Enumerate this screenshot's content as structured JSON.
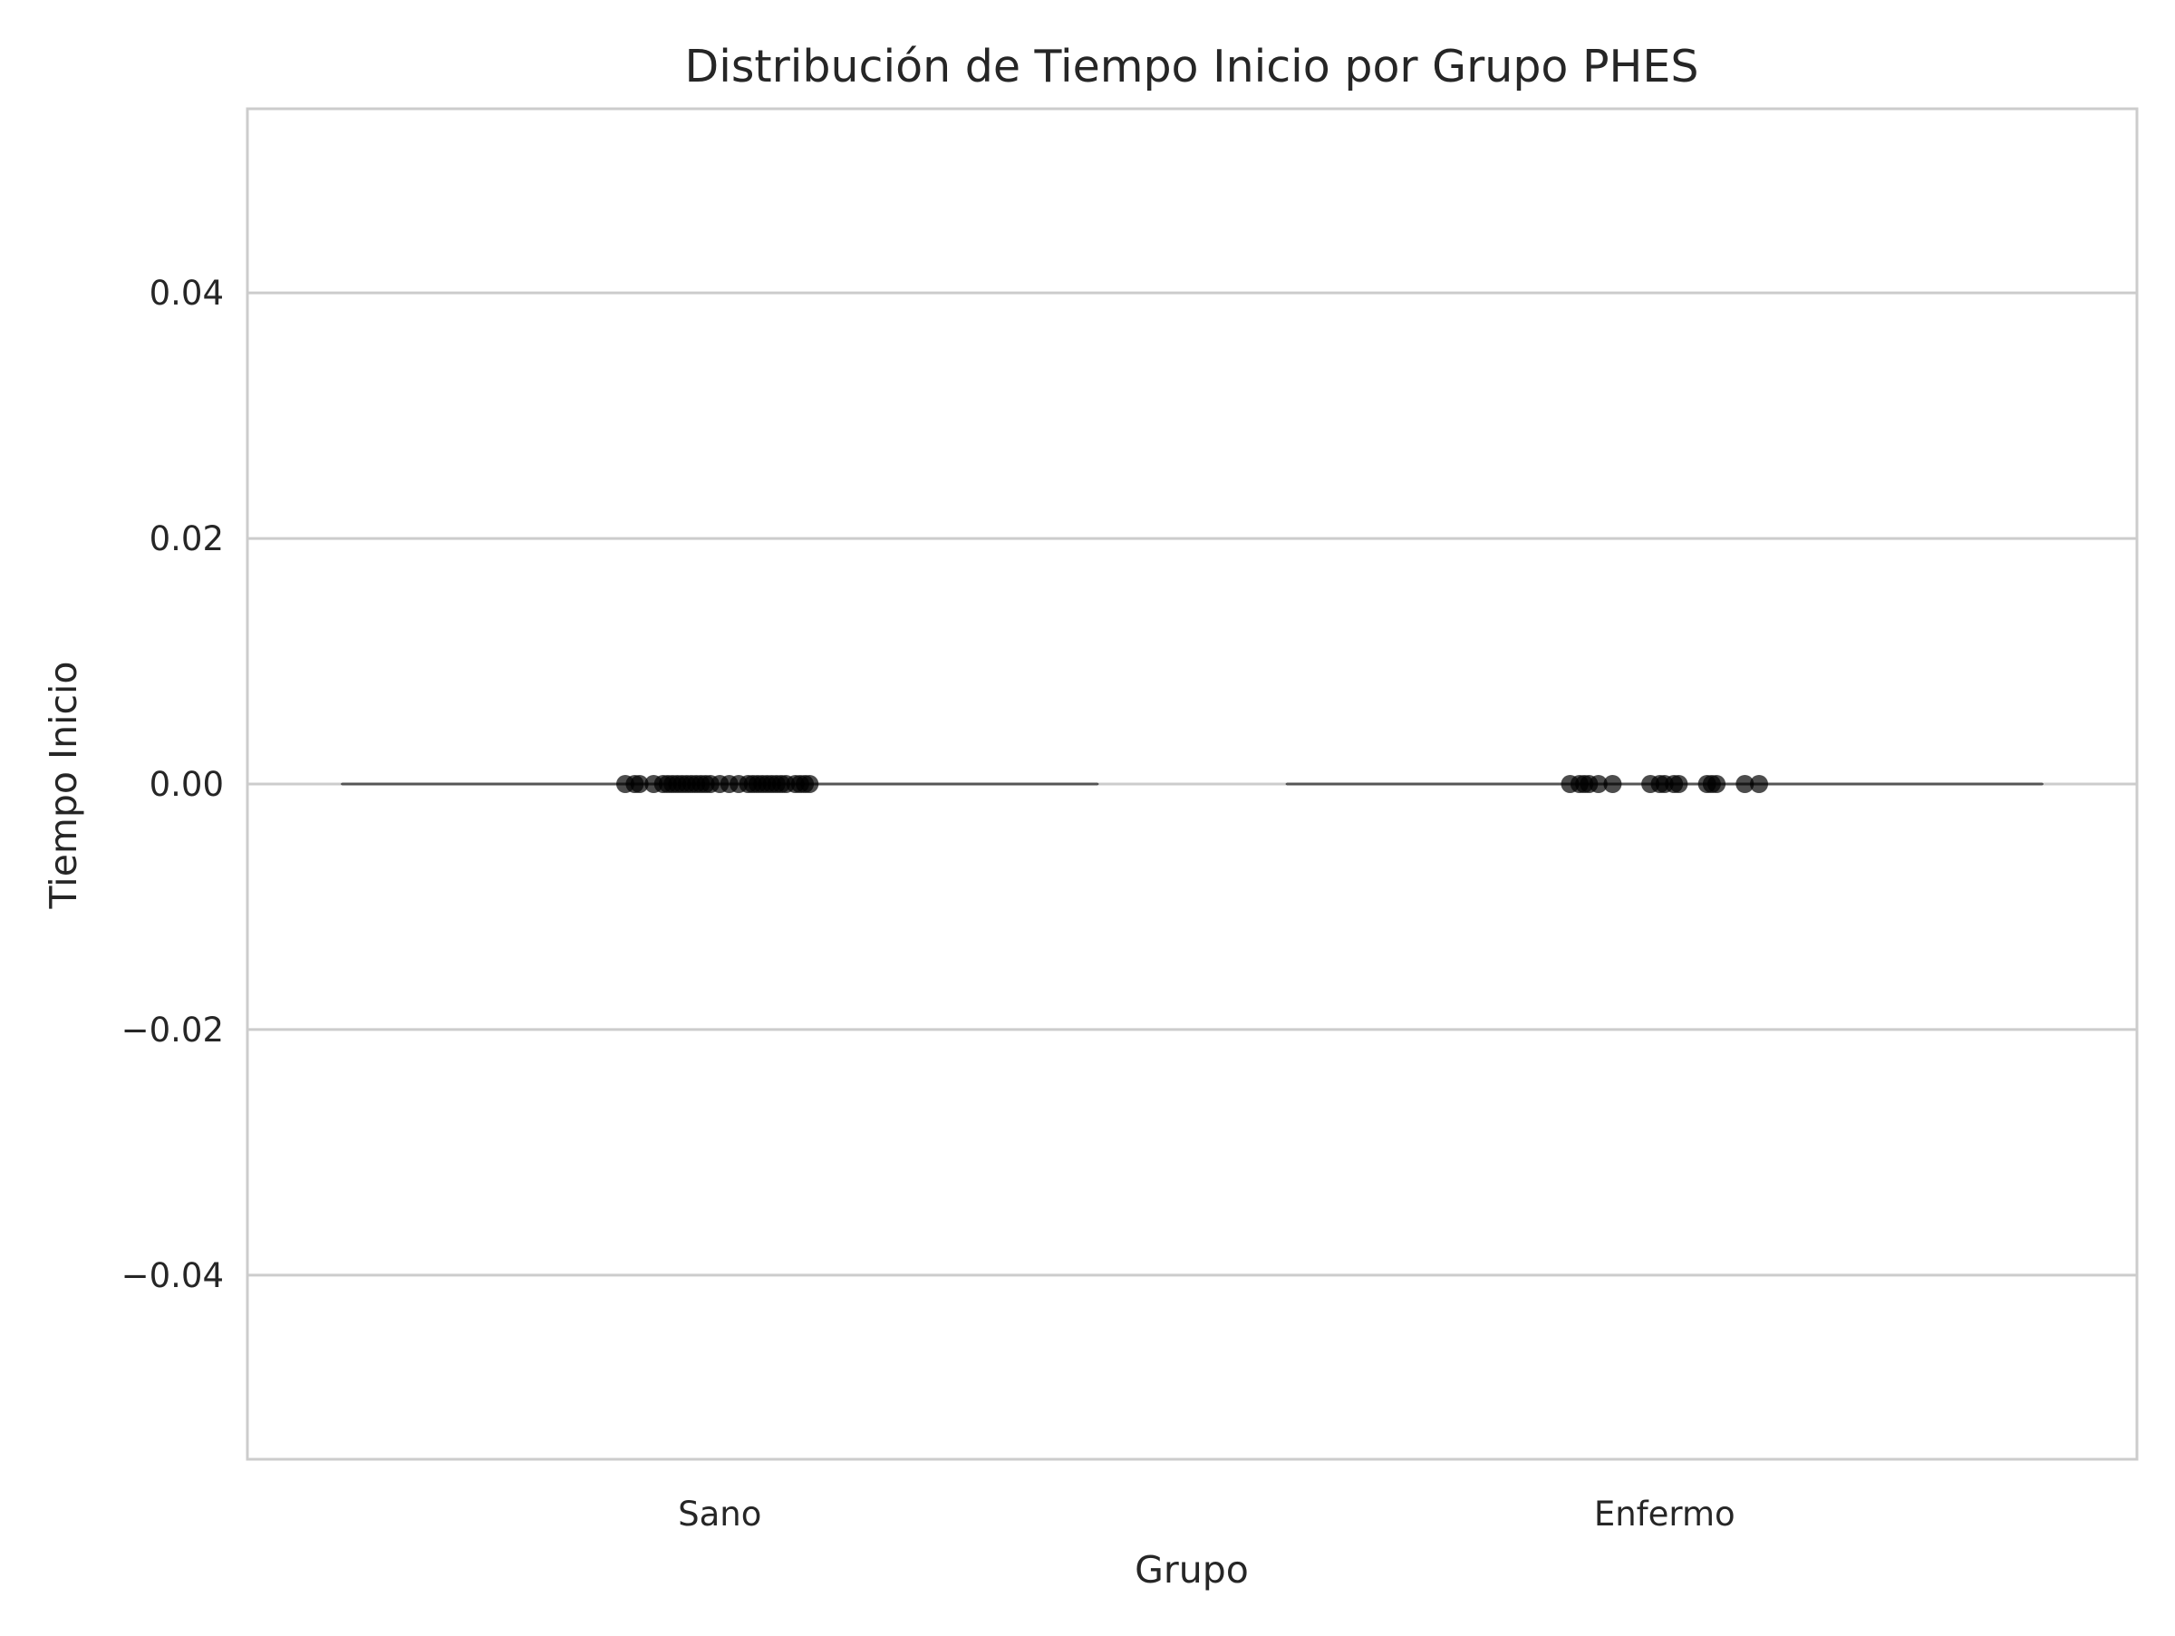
{
  "chart_data": {
    "type": "box",
    "title": "Distribución de Tiempo Inicio por Grupo PHES",
    "xlabel": "Grupo",
    "ylabel": "Tiempo Inicio",
    "categories": [
      "Sano",
      "Enfermo"
    ],
    "ylim": [
      -0.055,
      0.055
    ],
    "yticks": [
      -0.04,
      -0.02,
      0.0,
      0.02,
      0.04
    ],
    "ytick_labels": [
      "−0.04",
      "−0.02",
      "0.00",
      "0.02",
      "0.04"
    ],
    "grid": true,
    "groups": [
      {
        "category": "Sano",
        "median": 0.0,
        "q1": 0.0,
        "q3": 0.0,
        "min": 0.0,
        "max": 0.0,
        "points": [
          {
            "jitter": -0.1,
            "y": 0
          },
          {
            "jitter": -0.09,
            "y": 0
          },
          {
            "jitter": -0.085,
            "y": 0
          },
          {
            "jitter": -0.07,
            "y": 0
          },
          {
            "jitter": -0.06,
            "y": 0
          },
          {
            "jitter": -0.055,
            "y": 0
          },
          {
            "jitter": -0.05,
            "y": 0
          },
          {
            "jitter": -0.045,
            "y": 0
          },
          {
            "jitter": -0.04,
            "y": 0
          },
          {
            "jitter": -0.035,
            "y": 0
          },
          {
            "jitter": -0.03,
            "y": 0
          },
          {
            "jitter": -0.025,
            "y": 0
          },
          {
            "jitter": -0.02,
            "y": 0
          },
          {
            "jitter": -0.015,
            "y": 0
          },
          {
            "jitter": -0.01,
            "y": 0
          },
          {
            "jitter": 0.0,
            "y": 0
          },
          {
            "jitter": 0.01,
            "y": 0
          },
          {
            "jitter": 0.02,
            "y": 0
          },
          {
            "jitter": 0.03,
            "y": 0
          },
          {
            "jitter": 0.035,
            "y": 0
          },
          {
            "jitter": 0.04,
            "y": 0
          },
          {
            "jitter": 0.045,
            "y": 0
          },
          {
            "jitter": 0.05,
            "y": 0
          },
          {
            "jitter": 0.055,
            "y": 0
          },
          {
            "jitter": 0.06,
            "y": 0
          },
          {
            "jitter": 0.065,
            "y": 0
          },
          {
            "jitter": 0.07,
            "y": 0
          },
          {
            "jitter": 0.08,
            "y": 0
          },
          {
            "jitter": 0.085,
            "y": 0
          },
          {
            "jitter": 0.09,
            "y": 0
          },
          {
            "jitter": 0.095,
            "y": 0
          }
        ]
      },
      {
        "category": "Enfermo",
        "median": 0.0,
        "q1": 0.0,
        "q3": 0.0,
        "min": 0.0,
        "max": 0.0,
        "points": [
          {
            "jitter": -0.1,
            "y": 0
          },
          {
            "jitter": -0.09,
            "y": 0
          },
          {
            "jitter": -0.085,
            "y": 0
          },
          {
            "jitter": -0.08,
            "y": 0
          },
          {
            "jitter": -0.07,
            "y": 0
          },
          {
            "jitter": -0.055,
            "y": 0
          },
          {
            "jitter": -0.015,
            "y": 0
          },
          {
            "jitter": 0.0,
            "y": 0
          },
          {
            "jitter": -0.005,
            "y": 0
          },
          {
            "jitter": 0.01,
            "y": 0
          },
          {
            "jitter": 0.015,
            "y": 0
          },
          {
            "jitter": 0.045,
            "y": 0
          },
          {
            "jitter": 0.05,
            "y": 0
          },
          {
            "jitter": 0.055,
            "y": 0
          },
          {
            "jitter": 0.085,
            "y": 0
          },
          {
            "jitter": 0.1,
            "y": 0
          }
        ]
      }
    ],
    "colors": {
      "points": "#000000",
      "box_line": "#555555",
      "grid": "#cccccc",
      "spine": "#cccccc"
    }
  }
}
